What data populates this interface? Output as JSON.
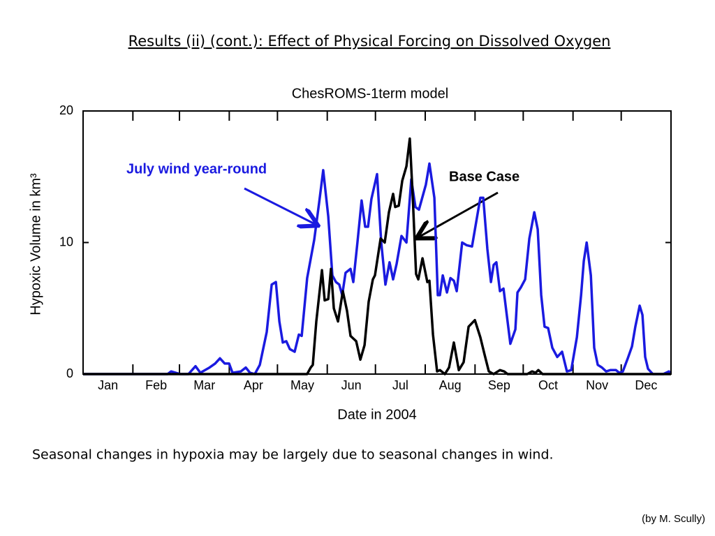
{
  "slide_title": "Results (ii) (cont.): Effect of Physical Forcing on Dissolved Oxygen",
  "caption": "Seasonal changes in hypoxia may be largely due to seasonal changes in wind.",
  "credit": "(by M. Scully)",
  "chart_data": {
    "type": "line",
    "title": "ChesROMS-1term model",
    "x_label": "Date in 2004",
    "y_label": "Hypoxic Volume in km³",
    "xlim": [
      0,
      366
    ],
    "ylim": [
      0,
      20
    ],
    "yticks": [
      0,
      10,
      20
    ],
    "xticks": [
      {
        "value": 15.5,
        "label": "Jan"
      },
      {
        "value": 45.5,
        "label": "Feb"
      },
      {
        "value": 75.5,
        "label": "Mar"
      },
      {
        "value": 106,
        "label": "Apr"
      },
      {
        "value": 136.5,
        "label": "May"
      },
      {
        "value": 167,
        "label": "Jun"
      },
      {
        "value": 197.5,
        "label": "Jul"
      },
      {
        "value": 228.5,
        "label": "Aug"
      },
      {
        "value": 259,
        "label": "Sep"
      },
      {
        "value": 289.5,
        "label": "Oct"
      },
      {
        "value": 320,
        "label": "Nov"
      },
      {
        "value": 350.5,
        "label": "Dec"
      }
    ],
    "minor_xticks": [
      31,
      60,
      91,
      121,
      152,
      182,
      213,
      244,
      274,
      305,
      335
    ],
    "series": [
      {
        "name": "July wind year-round",
        "color": "#1a1ae0",
        "x": [
          0,
          52.6,
          54.8,
          60.4,
          65.6,
          70,
          73,
          78.7,
          82.2,
          85.2,
          88.2,
          90.9,
          93,
          98.2,
          101.3,
          103.9,
          106.9,
          110,
          114.3,
          117.4,
          120,
          122.2,
          124.3,
          126.5,
          128.7,
          131.7,
          134.3,
          136.1,
          139.5,
          143.9,
          146.9,
          149.5,
          152.6,
          155.2,
          157.4,
          159.5,
          161.3,
          163.4,
          166.5,
          168.2,
          170.8,
          173.4,
          175.6,
          177.4,
          179.5,
          183,
          185.6,
          188.2,
          190.8,
          193,
          195.2,
          198.2,
          201.3,
          204.3,
          206.9,
          209.1,
          213.4,
          215.6,
          218.7,
          220.8,
          222.1,
          223.9,
          226.5,
          228.7,
          230.8,
          232.6,
          236,
          238.7,
          242.1,
          247.3,
          249.1,
          251.7,
          253.9,
          255.6,
          257.3,
          259.5,
          261.7,
          266,
          269.1,
          270.4,
          272.6,
          275.2,
          277.8,
          280.9,
          283,
          285.2,
          287.3,
          289.5,
          292.1,
          295.2,
          298.2,
          301.2,
          303.9,
          307.4,
          310,
          311.7,
          313.5,
          316.1,
          318.2,
          320.4,
          323,
          325.6,
          328.2,
          331.7,
          333.8,
          336,
          339.1,
          341.7,
          343.8,
          346.5,
          348.2,
          349.9,
          351.7,
          354.7,
          361.2,
          364.7,
          366
        ],
        "values": [
          0,
          0,
          0.2,
          0,
          0,
          0.6,
          0.1,
          0.5,
          0.8,
          1.2,
          0.8,
          0.8,
          0.1,
          0.2,
          0.5,
          0.1,
          0,
          0.7,
          3.2,
          6.8,
          7,
          4,
          2.4,
          2.5,
          1.9,
          1.7,
          3,
          2.9,
          7.3,
          10.2,
          13,
          15.5,
          12,
          7.5,
          7,
          6.8,
          6,
          7.7,
          8,
          7,
          10,
          13.2,
          11.2,
          11.2,
          13.3,
          15.2,
          10,
          6.8,
          8.5,
          7.2,
          8.4,
          10.5,
          10,
          14.8,
          12.7,
          12.5,
          14.4,
          16,
          13.4,
          6,
          6,
          7.5,
          6.2,
          7.3,
          7.1,
          6.3,
          10,
          9.8,
          9.7,
          13.4,
          13.4,
          9.5,
          7,
          8.3,
          8.5,
          6.3,
          6.5,
          2.3,
          3.4,
          6.2,
          6.6,
          7.2,
          10.3,
          12.3,
          11,
          6,
          3.6,
          3.5,
          2,
          1.3,
          1.7,
          0.2,
          0.3,
          2.8,
          6,
          8.6,
          10,
          7.5,
          2,
          0.7,
          0.5,
          0.2,
          0.3,
          0.3,
          0.1,
          0.2,
          1.2,
          2.1,
          3.6,
          5.2,
          4.5,
          1.3,
          0.4,
          0,
          0,
          0.2,
          0
        ]
      },
      {
        "name": "Base Case",
        "color": "#000000",
        "x": [
          0,
          139.5,
          141.7,
          143,
          145.2,
          148.7,
          150.4,
          152.6,
          154.3,
          156.1,
          158.7,
          161.7,
          164.3,
          166.5,
          170,
          172.6,
          175.2,
          177.8,
          180.4,
          181.7,
          185.2,
          187.8,
          190.4,
          193,
          194.3,
          196.5,
          198.7,
          201.3,
          203.4,
          205.2,
          207.3,
          208.7,
          211.3,
          214.3,
          215.6,
          217.8,
          220.4,
          222.1,
          225.2,
          227.8,
          230.8,
          233.9,
          236.9,
          240,
          243.9,
          247.3,
          249.9,
          252.6,
          255.6,
          259.5,
          262.1,
          264.3,
          276.5,
          279.5,
          281.7,
          283.4,
          286,
          366
        ],
        "values": [
          0,
          0,
          0.5,
          0.7,
          4,
          7.9,
          5.6,
          5.7,
          8,
          5,
          4,
          6.3,
          4.8,
          2.9,
          2.5,
          1.1,
          2.2,
          5.5,
          7.2,
          7.5,
          10.3,
          10,
          12.3,
          13.7,
          12.7,
          12.8,
          14.7,
          15.8,
          17.9,
          13.5,
          7.6,
          7.2,
          8.8,
          7,
          7.1,
          3,
          0.2,
          0.3,
          0,
          0.5,
          2.4,
          0.3,
          0.9,
          3.6,
          4.1,
          2.8,
          1.5,
          0.2,
          0,
          0.3,
          0.2,
          0,
          0,
          0.2,
          0.1,
          0.3,
          0,
          0
        ]
      }
    ]
  }
}
